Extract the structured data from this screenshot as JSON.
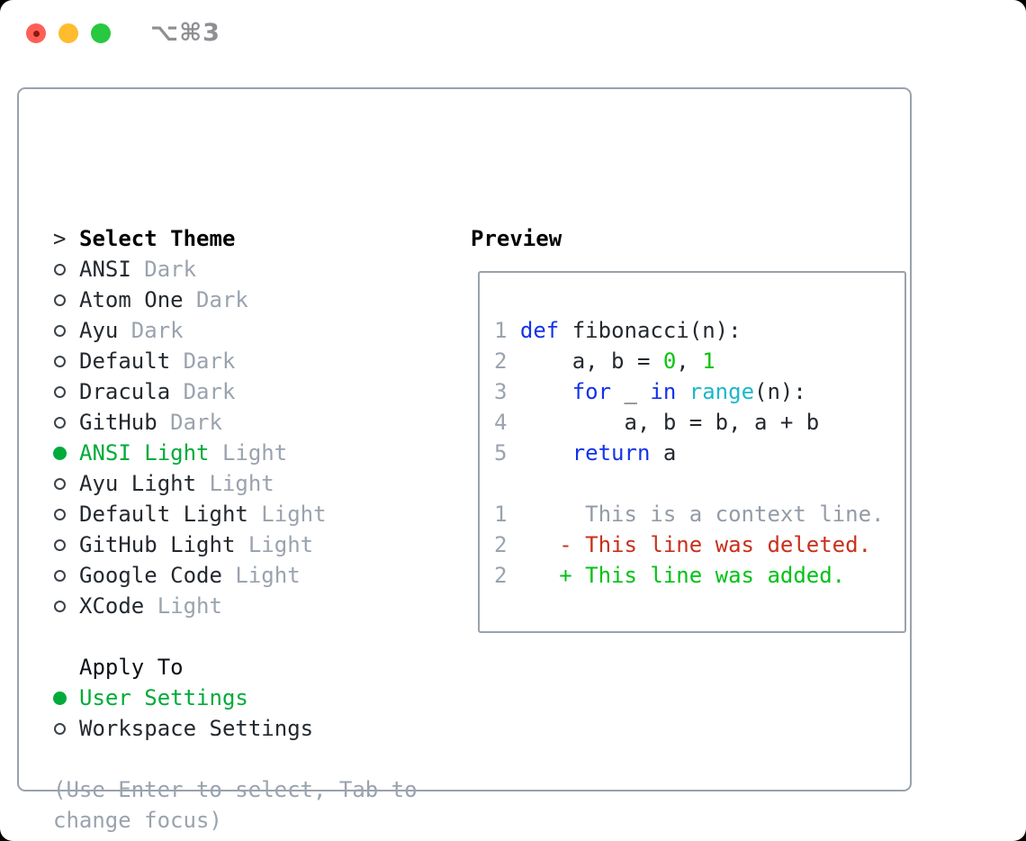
{
  "titlebar": {
    "shortcut": "⌥⌘3",
    "traffic_lights": [
      "close",
      "minimize",
      "zoom"
    ]
  },
  "theme_picker": {
    "header_prefix": ">",
    "header_label": "Select Theme",
    "items": [
      {
        "name": "ANSI",
        "variant": "Dark",
        "selected": false
      },
      {
        "name": "Atom One",
        "variant": "Dark",
        "selected": false
      },
      {
        "name": "Ayu",
        "variant": "Dark",
        "selected": false
      },
      {
        "name": "Default",
        "variant": "Dark",
        "selected": false
      },
      {
        "name": "Dracula",
        "variant": "Dark",
        "selected": false
      },
      {
        "name": "GitHub",
        "variant": "Dark",
        "selected": false
      },
      {
        "name": "ANSI Light",
        "variant": "Light",
        "selected": true
      },
      {
        "name": "Ayu Light",
        "variant": "Light",
        "selected": false
      },
      {
        "name": "Default Light",
        "variant": "Light",
        "selected": false
      },
      {
        "name": "GitHub Light",
        "variant": "Light",
        "selected": false
      },
      {
        "name": "Google Code",
        "variant": "Light",
        "selected": false
      },
      {
        "name": "XCode",
        "variant": "Light",
        "selected": false
      }
    ]
  },
  "apply_to": {
    "header": "Apply To",
    "options": [
      {
        "label": "User Settings",
        "selected": true
      },
      {
        "label": "Workspace Settings",
        "selected": false
      }
    ]
  },
  "help": {
    "lines": [
      "(Use Enter to select, Tab to",
      "change focus)"
    ]
  },
  "preview": {
    "header": "Preview",
    "code_lines": [
      {
        "num": "1",
        "segments": [
          {
            "t": " ",
            "c": "fg"
          },
          {
            "t": "def",
            "c": "kw"
          },
          {
            "t": " fibonacci(n):",
            "c": "fg"
          }
        ]
      },
      {
        "num": "2",
        "segments": [
          {
            "t": "     a, b = ",
            "c": "fg"
          },
          {
            "t": "0",
            "c": "num"
          },
          {
            "t": ", ",
            "c": "fg"
          },
          {
            "t": "1",
            "c": "num"
          }
        ]
      },
      {
        "num": "3",
        "segments": [
          {
            "t": "     ",
            "c": "fg"
          },
          {
            "t": "for",
            "c": "kw"
          },
          {
            "t": " _ ",
            "c": "fg"
          },
          {
            "t": "in",
            "c": "kw"
          },
          {
            "t": " ",
            "c": "fg"
          },
          {
            "t": "range",
            "c": "fn"
          },
          {
            "t": "(n):",
            "c": "fg"
          }
        ]
      },
      {
        "num": "4",
        "segments": [
          {
            "t": "         a, b = b, a + b",
            "c": "fg"
          }
        ]
      },
      {
        "num": "5",
        "segments": [
          {
            "t": "     ",
            "c": "fg"
          },
          {
            "t": "return",
            "c": "kw"
          },
          {
            "t": " a",
            "c": "fg"
          }
        ]
      }
    ],
    "diff_lines": [
      {
        "num": "1",
        "segments": [
          {
            "t": "      This is a context line.",
            "c": "ctx"
          }
        ]
      },
      {
        "num": "2",
        "segments": [
          {
            "t": "    - This line was deleted.",
            "c": "del"
          }
        ]
      },
      {
        "num": "2",
        "segments": [
          {
            "t": "    + This line was added.",
            "c": "add"
          }
        ]
      }
    ]
  },
  "colors": {
    "fg": "#24292f",
    "muted": "#9aa3ae",
    "border": "#9aa2ac",
    "kw": "#1433eb",
    "fn": "#1cb8cc",
    "numlit": "#0cc30c",
    "sel": "#00ab3a",
    "add": "#00c214",
    "del": "#c9301c",
    "ctx": "#939ca6",
    "ln": "#9aa3ae",
    "shortcut": "#8e8e93",
    "tl-red": "#ff5f57",
    "tl-yellow": "#febc2e",
    "tl-green": "#28c840"
  }
}
